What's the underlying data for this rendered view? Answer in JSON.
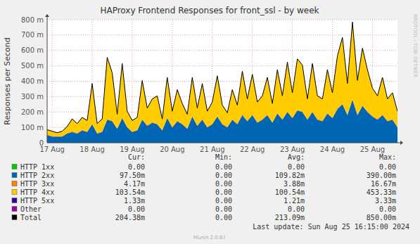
{
  "chart_data": {
    "type": "area",
    "title": "HAProxy Frontend Responses for front_ssl - by week",
    "y_label": "Responses per Second",
    "watermark": "RRDTOOL / TOBI OETIKER",
    "footer": "Munin 2.0.67",
    "last_update": "Last update: Sun Aug 25 16:15:00 2024",
    "stacked": true,
    "grid": true,
    "ylim": [
      0,
      0.8
    ],
    "yticks": [
      0,
      {
        "value": 0.1,
        "label": "100 m"
      },
      {
        "value": 0.2,
        "label": "200 m"
      },
      {
        "value": 0.3,
        "label": "300 m"
      },
      {
        "value": 0.4,
        "label": "400 m"
      },
      {
        "value": 0.5,
        "label": "500 m"
      },
      {
        "value": 0.6,
        "label": "600 m"
      },
      {
        "value": 0.7,
        "label": "700 m"
      },
      {
        "value": 0.8,
        "label": "800 m"
      }
    ],
    "categories": [
      null,
      "17 Aug",
      null,
      null,
      null,
      null,
      null,
      null,
      null,
      "18 Aug",
      null,
      null,
      null,
      null,
      null,
      null,
      null,
      "19 Aug",
      null,
      null,
      null,
      null,
      null,
      null,
      null,
      "20 Aug",
      null,
      null,
      null,
      null,
      null,
      null,
      null,
      "21 Aug",
      null,
      null,
      null,
      null,
      null,
      null,
      null,
      "22 Aug",
      null,
      null,
      null,
      null,
      null,
      null,
      null,
      "23 Aug",
      null,
      null,
      null,
      null,
      null,
      null,
      null,
      "24 Aug",
      null,
      null,
      null,
      null,
      null,
      null,
      null,
      "25 Aug",
      null,
      null,
      null,
      null,
      null
    ],
    "stats_header": [
      "Cur:",
      "Min:",
      "Avg:",
      "Max:"
    ],
    "series": [
      {
        "name": "HTTP 1xx",
        "color": "#00CC00",
        "stats": [
          "0.00",
          "0.00",
          "0.00",
          "0.00"
        ],
        "values": [
          0,
          0,
          0,
          0,
          0,
          0,
          0,
          0,
          0,
          0,
          0,
          0,
          0,
          0,
          0,
          0,
          0,
          0,
          0,
          0,
          0,
          0,
          0,
          0,
          0,
          0,
          0,
          0,
          0,
          0,
          0,
          0,
          0,
          0,
          0,
          0,
          0,
          0,
          0,
          0,
          0,
          0,
          0,
          0,
          0,
          0,
          0,
          0,
          0,
          0,
          0,
          0,
          0,
          0,
          0,
          0,
          0,
          0,
          0,
          0,
          0,
          0,
          0,
          0,
          0,
          0,
          0,
          0,
          0,
          0,
          0
        ]
      },
      {
        "name": "HTTP 2xx",
        "color": "#0066B3",
        "stats": [
          "97.50m",
          "0.00",
          "109.82m",
          "390.00m"
        ],
        "values": [
          0.05,
          0.04,
          0.04,
          0.04,
          0.06,
          0.07,
          0.06,
          0.08,
          0.07,
          0.12,
          0.06,
          0.07,
          0.15,
          0.14,
          0.09,
          0.16,
          0.1,
          0.07,
          0.08,
          0.15,
          0.11,
          0.13,
          0.12,
          0.08,
          0.16,
          0.1,
          0.14,
          0.12,
          0.09,
          0.17,
          0.11,
          0.15,
          0.1,
          0.12,
          0.17,
          0.12,
          0.1,
          0.15,
          0.12,
          0.18,
          0.14,
          0.18,
          0.13,
          0.15,
          0.18,
          0.13,
          0.19,
          0.15,
          0.2,
          0.16,
          0.21,
          0.2,
          0.15,
          0.2,
          0.15,
          0.14,
          0.19,
          0.16,
          0.22,
          0.25,
          0.18,
          0.28,
          0.18,
          0.24,
          0.2,
          0.17,
          0.15,
          0.18,
          0.14,
          0.15,
          0.1
        ]
      },
      {
        "name": "HTTP 3xx",
        "color": "#FF8000",
        "stats": [
          "4.17m",
          "0.00",
          "3.88m",
          "16.67m"
        ],
        "values": [
          0.004,
          0.004,
          0.004,
          0.004,
          0.004,
          0.004,
          0.004,
          0.004,
          0.004,
          0.004,
          0.004,
          0.004,
          0.004,
          0.004,
          0.004,
          0.004,
          0.004,
          0.004,
          0.004,
          0.004,
          0.004,
          0.004,
          0.004,
          0.004,
          0.004,
          0.004,
          0.004,
          0.004,
          0.004,
          0.004,
          0.004,
          0.004,
          0.004,
          0.004,
          0.004,
          0.004,
          0.004,
          0.004,
          0.004,
          0.004,
          0.004,
          0.004,
          0.004,
          0.004,
          0.004,
          0.004,
          0.004,
          0.004,
          0.004,
          0.004,
          0.004,
          0.004,
          0.004,
          0.004,
          0.004,
          0.004,
          0.004,
          0.004,
          0.004,
          0.004,
          0.004,
          0.004,
          0.004,
          0.004,
          0.004,
          0.004,
          0.004,
          0.004,
          0.004,
          0.004,
          0.004
        ]
      },
      {
        "name": "HTTP 4xx",
        "color": "#FFCC00",
        "stats": [
          "103.54m",
          "0.00",
          "100.54m",
          "453.33m"
        ],
        "values": [
          0.03,
          0.03,
          0.02,
          0.03,
          0.04,
          0.08,
          0.06,
          0.08,
          0.07,
          0.26,
          0.06,
          0.08,
          0.4,
          0.31,
          0.09,
          0.35,
          0.1,
          0.07,
          0.08,
          0.25,
          0.11,
          0.15,
          0.18,
          0.07,
          0.26,
          0.1,
          0.2,
          0.13,
          0.09,
          0.25,
          0.11,
          0.23,
          0.1,
          0.14,
          0.26,
          0.12,
          0.09,
          0.19,
          0.12,
          0.28,
          0.14,
          0.26,
          0.13,
          0.15,
          0.24,
          0.12,
          0.28,
          0.15,
          0.32,
          0.16,
          0.33,
          0.3,
          0.13,
          0.31,
          0.15,
          0.14,
          0.28,
          0.16,
          0.34,
          0.43,
          0.2,
          0.5,
          0.22,
          0.37,
          0.27,
          0.18,
          0.15,
          0.24,
          0.14,
          0.17,
          0.1
        ]
      },
      {
        "name": "HTTP 5xx",
        "color": "#330099",
        "stats": [
          "1.33m",
          "0.00",
          "1.21m",
          "3.33m"
        ],
        "values": [
          0.001,
          0.001,
          0.001,
          0.001,
          0.001,
          0.001,
          0.001,
          0.001,
          0.001,
          0.001,
          0.001,
          0.001,
          0.001,
          0.001,
          0.001,
          0.001,
          0.001,
          0.001,
          0.001,
          0.001,
          0.001,
          0.001,
          0.001,
          0.001,
          0.001,
          0.001,
          0.001,
          0.001,
          0.001,
          0.001,
          0.001,
          0.001,
          0.001,
          0.001,
          0.001,
          0.001,
          0.001,
          0.001,
          0.001,
          0.001,
          0.001,
          0.001,
          0.001,
          0.001,
          0.001,
          0.001,
          0.001,
          0.001,
          0.001,
          0.001,
          0.001,
          0.001,
          0.001,
          0.001,
          0.001,
          0.001,
          0.001,
          0.001,
          0.001,
          0.001,
          0.001,
          0.001,
          0.001,
          0.001,
          0.001,
          0.001,
          0.001,
          0.001,
          0.001,
          0.001,
          0.001
        ]
      },
      {
        "name": "Other",
        "color": "#990099",
        "stats": [
          "0.00",
          "0.00",
          "0.00",
          "0.00"
        ],
        "values": [
          0,
          0,
          0,
          0,
          0,
          0,
          0,
          0,
          0,
          0,
          0,
          0,
          0,
          0,
          0,
          0,
          0,
          0,
          0,
          0,
          0,
          0,
          0,
          0,
          0,
          0,
          0,
          0,
          0,
          0,
          0,
          0,
          0,
          0,
          0,
          0,
          0,
          0,
          0,
          0,
          0,
          0,
          0,
          0,
          0,
          0,
          0,
          0,
          0,
          0,
          0,
          0,
          0,
          0,
          0,
          0,
          0,
          0,
          0,
          0,
          0,
          0,
          0,
          0,
          0,
          0,
          0,
          0,
          0,
          0,
          0
        ]
      },
      {
        "name": "Total",
        "color": "#000000",
        "type": "line",
        "stats": [
          "204.38m",
          "0.00",
          "213.09m",
          "850.00m"
        ],
        "values": [
          0.085,
          0.075,
          0.065,
          0.075,
          0.105,
          0.155,
          0.125,
          0.165,
          0.145,
          0.385,
          0.125,
          0.155,
          0.555,
          0.455,
          0.185,
          0.515,
          0.205,
          0.145,
          0.165,
          0.405,
          0.225,
          0.285,
          0.305,
          0.155,
          0.425,
          0.205,
          0.345,
          0.255,
          0.185,
          0.425,
          0.225,
          0.385,
          0.205,
          0.265,
          0.435,
          0.245,
          0.195,
          0.345,
          0.245,
          0.465,
          0.285,
          0.445,
          0.265,
          0.305,
          0.425,
          0.255,
          0.475,
          0.305,
          0.525,
          0.325,
          0.545,
          0.505,
          0.285,
          0.515,
          0.305,
          0.285,
          0.475,
          0.325,
          0.565,
          0.685,
          0.385,
          0.785,
          0.405,
          0.615,
          0.475,
          0.355,
          0.305,
          0.425,
          0.285,
          0.325,
          0.205
        ]
      }
    ]
  }
}
